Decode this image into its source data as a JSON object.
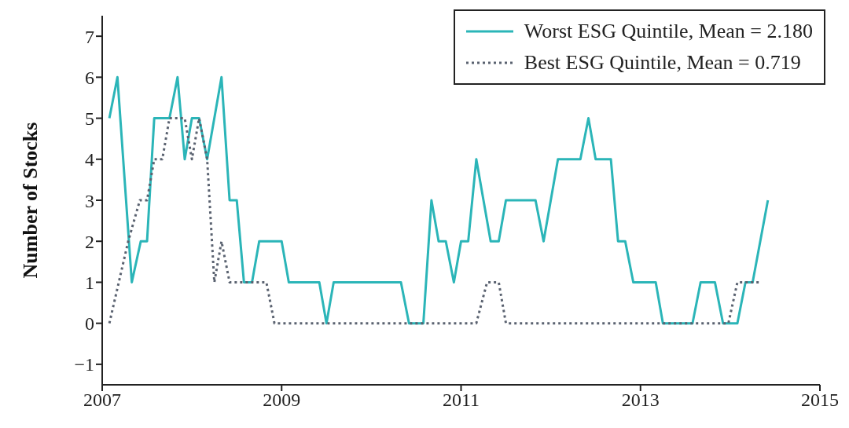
{
  "chart_data": {
    "type": "line",
    "ylabel": "Number of Stocks",
    "xlim": [
      2007,
      2015
    ],
    "xticks": [
      2007,
      2009,
      2011,
      2013,
      2015
    ],
    "ylim": [
      -1.5,
      7.5
    ],
    "yticks": [
      -1,
      0,
      1,
      2,
      3,
      4,
      5,
      6,
      7
    ],
    "grid": false,
    "legend": "top right",
    "marker": "none",
    "series": [
      {
        "name": "Worst ESG Quintile, Mean = 2.180",
        "color": "#2bb5b8",
        "line_style": "solid",
        "x": [
          2007.08,
          2007.17,
          2007.33,
          2007.43,
          2007.5,
          2007.58,
          2007.75,
          2007.84,
          2007.92,
          2008.0,
          2008.08,
          2008.17,
          2008.33,
          2008.42,
          2008.5,
          2008.58,
          2008.67,
          2008.75,
          2009.0,
          2009.08,
          2009.42,
          2009.5,
          2009.58,
          2010.33,
          2010.42,
          2010.58,
          2010.67,
          2010.75,
          2010.83,
          2010.92,
          2011.0,
          2011.08,
          2011.17,
          2011.33,
          2011.42,
          2011.5,
          2011.83,
          2011.92,
          2012.08,
          2012.33,
          2012.42,
          2012.5,
          2012.67,
          2012.75,
          2012.83,
          2012.92,
          2013.17,
          2013.25,
          2013.58,
          2013.67,
          2013.83,
          2013.92,
          2014.08,
          2014.17,
          2014.25,
          2014.42
        ],
        "values": [
          5,
          6,
          1,
          2,
          2,
          5,
          5,
          6,
          4,
          5,
          5,
          4,
          6,
          3,
          3,
          1,
          1,
          2,
          2,
          1,
          1,
          0,
          1,
          1,
          0,
          0,
          3,
          2,
          2,
          1,
          2,
          2,
          4,
          2,
          2,
          3,
          3,
          2,
          4,
          4,
          5,
          4,
          4,
          2,
          2,
          1,
          1,
          0,
          0,
          1,
          1,
          0,
          0,
          1,
          1,
          3
        ]
      },
      {
        "name": "Best ESG Quintile, Mean = 0.719",
        "color": "#5a6270",
        "line_style": "dotted",
        "x": [
          2007.08,
          2007.29,
          2007.42,
          2007.5,
          2007.58,
          2007.67,
          2007.75,
          2007.92,
          2008.0,
          2008.08,
          2008.17,
          2008.25,
          2008.33,
          2008.42,
          2008.83,
          2008.92,
          2011.17,
          2011.29,
          2011.42,
          2011.5,
          2013.98,
          2014.08,
          2014.33
        ],
        "values": [
          0,
          2,
          3,
          3,
          4,
          4,
          5,
          5,
          4,
          5,
          4,
          1,
          2,
          1,
          1,
          0,
          0,
          1,
          1,
          0,
          0,
          1,
          1
        ]
      }
    ]
  }
}
